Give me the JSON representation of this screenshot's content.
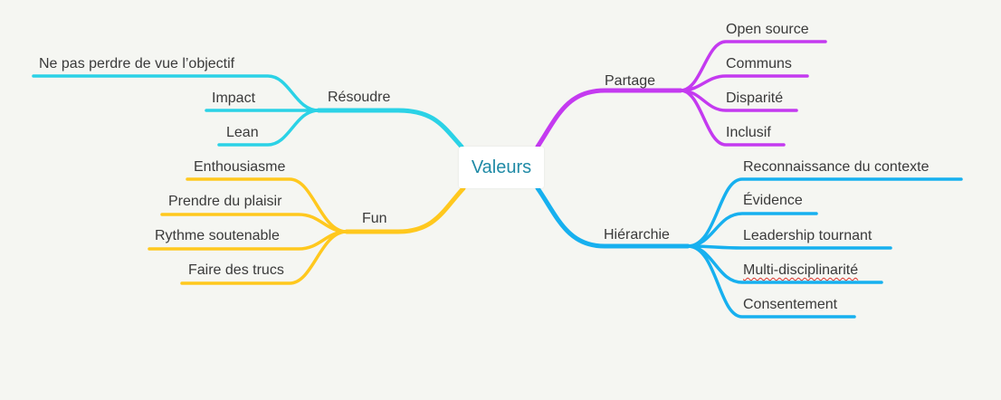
{
  "root": {
    "label": "Valeurs"
  },
  "colors": {
    "resoudre": "#2bd2e6",
    "fun": "#ffc81e",
    "partage": "#c43af0",
    "hierarchie": "#17b0ef",
    "root_text": "#1f8aa6"
  },
  "branches": {
    "resoudre": {
      "label": "Résoudre",
      "children": [
        "Ne pas perdre de vue l’objectif",
        "Impact",
        "Lean"
      ]
    },
    "fun": {
      "label": "Fun",
      "children": [
        "Enthousiasme",
        "Prendre du plaisir",
        "Rythme soutenable",
        "Faire des trucs"
      ]
    },
    "partage": {
      "label": "Partage",
      "children": [
        "Open source",
        "Communs",
        "Disparité",
        "Inclusif"
      ]
    },
    "hierarchie": {
      "label": "Hiérarchie",
      "children": [
        "Reconnaissance du contexte",
        "Évidence",
        "Leadership tournant",
        "Multi-disciplinarité",
        "Consentement"
      ]
    }
  }
}
